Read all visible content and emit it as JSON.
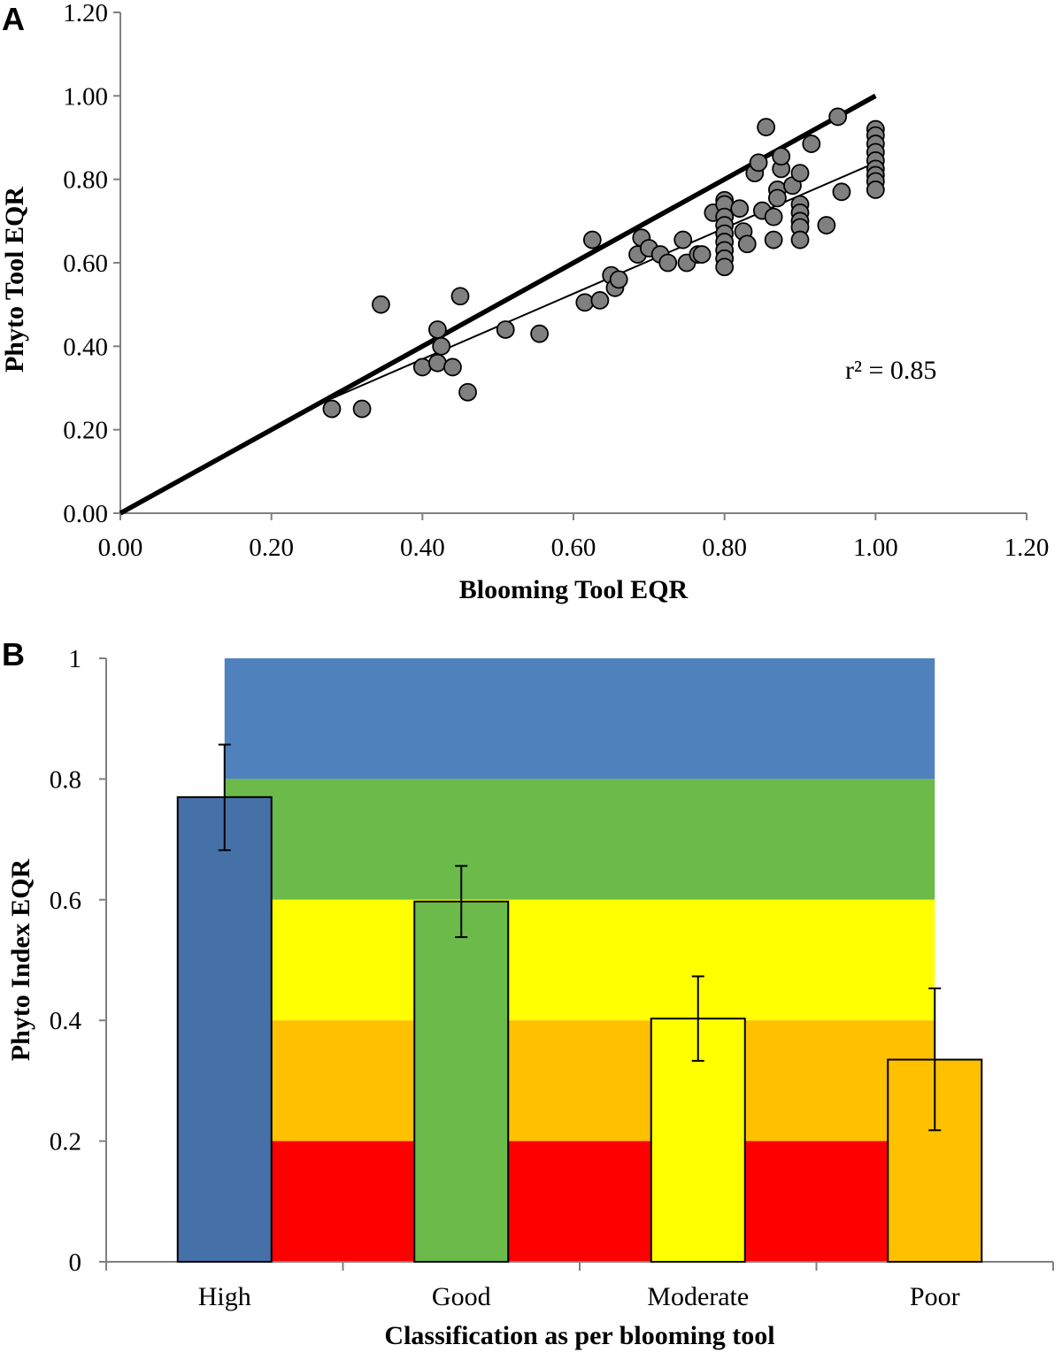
{
  "colors": {
    "high": "#4f81bd",
    "high_bar": "#4670a8",
    "good": "#6bba4a",
    "moderate": "#ffff00",
    "poor": "#ffc000",
    "bad": "#ff0000",
    "point_fill": "#808080",
    "axis": "#808080",
    "line": "#000000"
  },
  "chart_data": [
    {
      "panel_label": "A",
      "type": "scatter",
      "title": "",
      "xlabel": "Blooming Tool EQR",
      "ylabel": "Phyto Tool EQR",
      "xlim": [
        0,
        1.2
      ],
      "ylim": [
        0,
        1.2
      ],
      "xticks": [
        "0.00",
        "0.20",
        "0.40",
        "0.60",
        "0.80",
        "1.00",
        "1.20"
      ],
      "yticks": [
        "0.00",
        "0.20",
        "0.40",
        "0.60",
        "0.80",
        "1.00",
        "1.20"
      ],
      "xtick_values": [
        0,
        0.2,
        0.4,
        0.6,
        0.8,
        1.0,
        1.2
      ],
      "ytick_values": [
        0,
        0.2,
        0.4,
        0.6,
        0.8,
        1.0,
        1.2
      ],
      "annotation": "r² = 0.85",
      "reference_line": {
        "name": "1:1 line",
        "x": [
          0,
          1.0
        ],
        "y": [
          0,
          1.0
        ]
      },
      "regression_line": {
        "name": "fit",
        "x": [
          0.28,
          1.0
        ],
        "y": [
          0.275,
          0.84
        ]
      },
      "points": [
        [
          0.28,
          0.25
        ],
        [
          0.32,
          0.25
        ],
        [
          0.345,
          0.5
        ],
        [
          0.4,
          0.35
        ],
        [
          0.42,
          0.36
        ],
        [
          0.44,
          0.35
        ],
        [
          0.42,
          0.44
        ],
        [
          0.425,
          0.4
        ],
        [
          0.45,
          0.52
        ],
        [
          0.46,
          0.29
        ],
        [
          0.51,
          0.44
        ],
        [
          0.555,
          0.43
        ],
        [
          0.615,
          0.505
        ],
        [
          0.635,
          0.51
        ],
        [
          0.625,
          0.655
        ],
        [
          0.65,
          0.57
        ],
        [
          0.655,
          0.54
        ],
        [
          0.66,
          0.56
        ],
        [
          0.685,
          0.62
        ],
        [
          0.69,
          0.66
        ],
        [
          0.7,
          0.635
        ],
        [
          0.715,
          0.62
        ],
        [
          0.725,
          0.6
        ],
        [
          0.745,
          0.655
        ],
        [
          0.75,
          0.6
        ],
        [
          0.765,
          0.62
        ],
        [
          0.77,
          0.62
        ],
        [
          0.785,
          0.72
        ],
        [
          0.8,
          0.75
        ],
        [
          0.8,
          0.74
        ],
        [
          0.8,
          0.71
        ],
        [
          0.8,
          0.69
        ],
        [
          0.8,
          0.67
        ],
        [
          0.8,
          0.65
        ],
        [
          0.8,
          0.63
        ],
        [
          0.8,
          0.61
        ],
        [
          0.8,
          0.59
        ],
        [
          0.82,
          0.73
        ],
        [
          0.825,
          0.675
        ],
        [
          0.83,
          0.645
        ],
        [
          0.84,
          0.815
        ],
        [
          0.845,
          0.84
        ],
        [
          0.85,
          0.725
        ],
        [
          0.855,
          0.925
        ],
        [
          0.865,
          0.71
        ],
        [
          0.865,
          0.655
        ],
        [
          0.87,
          0.775
        ],
        [
          0.87,
          0.755
        ],
        [
          0.875,
          0.825
        ],
        [
          0.875,
          0.855
        ],
        [
          0.89,
          0.785
        ],
        [
          0.9,
          0.815
        ],
        [
          0.9,
          0.74
        ],
        [
          0.9,
          0.72
        ],
        [
          0.9,
          0.7
        ],
        [
          0.9,
          0.685
        ],
        [
          0.9,
          0.655
        ],
        [
          0.915,
          0.885
        ],
        [
          0.935,
          0.69
        ],
        [
          0.95,
          0.95
        ],
        [
          0.955,
          0.77
        ],
        [
          1.0,
          0.92
        ],
        [
          1.0,
          0.905
        ],
        [
          1.0,
          0.885
        ],
        [
          1.0,
          0.865
        ],
        [
          1.0,
          0.845
        ],
        [
          1.0,
          0.825
        ],
        [
          1.0,
          0.81
        ],
        [
          1.0,
          0.795
        ],
        [
          1.0,
          0.775
        ]
      ]
    },
    {
      "panel_label": "B",
      "type": "bar",
      "title": "",
      "xlabel": "Classification as per blooming tool",
      "ylabel": "Phyto Index EQR",
      "ylim": [
        0,
        1
      ],
      "yticks": [
        "0",
        "0.2",
        "0.4",
        "0.6",
        "0.8",
        "1"
      ],
      "ytick_values": [
        0,
        0.2,
        0.4,
        0.6,
        0.8,
        1.0
      ],
      "categories": [
        "High",
        "Good",
        "Moderate",
        "Poor"
      ],
      "values": [
        0.77,
        0.597,
        0.403,
        0.335
      ],
      "error_low": [
        0.682,
        0.538,
        0.333,
        0.218
      ],
      "error_high": [
        0.857,
        0.656,
        0.473,
        0.453
      ],
      "bar_color_keys": [
        "high_bar",
        "good",
        "moderate",
        "poor"
      ],
      "background_bands": [
        {
          "from": 0.8,
          "to": 1.0,
          "color_key": "high"
        },
        {
          "from": 0.6,
          "to": 0.8,
          "color_key": "good"
        },
        {
          "from": 0.4,
          "to": 0.6,
          "color_key": "moderate"
        },
        {
          "from": 0.2,
          "to": 0.4,
          "color_key": "poor"
        },
        {
          "from": 0.0,
          "to": 0.2,
          "color_key": "bad"
        }
      ]
    }
  ]
}
